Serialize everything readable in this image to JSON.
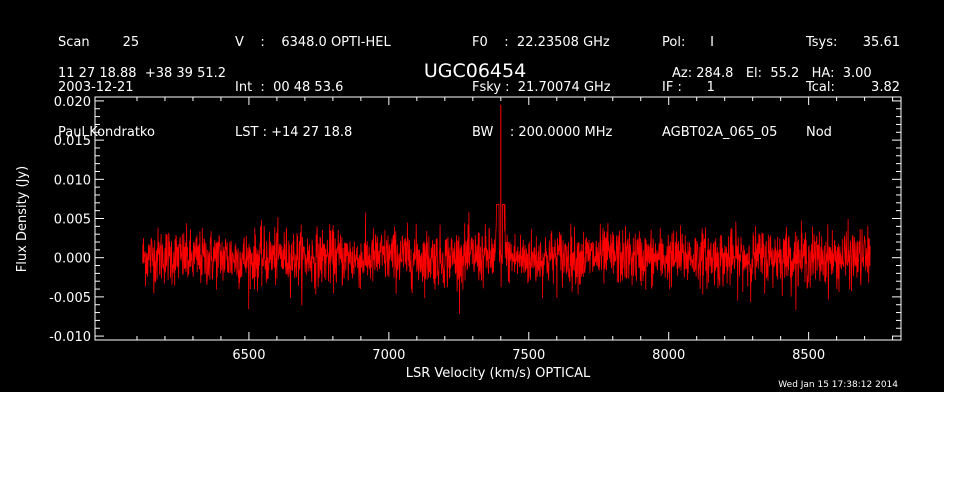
{
  "header": {
    "col1": [
      "Scan        25",
      "2003-12-21",
      "Paul Kondratko"
    ],
    "col2": [
      "V    :    6348.0 OPTI-HEL",
      "Int  :  00 48 53.6",
      "LST : +14 27 18.8"
    ],
    "col3": [
      "F0    :  22.23508 GHz",
      "Fsky :  21.70074 GHz",
      "BW    : 200.0000 MHz"
    ],
    "col4": [
      "Pol:      I",
      "IF :      1",
      "AGBT02A_065_05"
    ],
    "col5_labels": [
      "Tsys:",
      "Tcal:",
      "Nod"
    ],
    "col5_values": [
      "35.61",
      "3.82",
      ""
    ],
    "coords": "11 27 18.88  +38 39 51.2",
    "pointing": "Az: 284.8   El:  55.2   HA:  3.00"
  },
  "footer": "Wed Jan 15 17:38:12 2014",
  "colors": {
    "background": "#000000",
    "axes": "#ffffff",
    "trace": "#ff0000"
  },
  "chart_data": {
    "type": "line",
    "title": "UGC06454",
    "xlabel": "LSR Velocity (km/s) OPTICAL",
    "ylabel": "Flux Density (Jy)",
    "xlim": [
      5950,
      8830
    ],
    "ylim": [
      -0.0105,
      0.0205
    ],
    "xticks": [
      6500,
      7000,
      7500,
      8000,
      8500
    ],
    "xtick_labels": [
      "6500",
      "7000",
      "7500",
      "8000",
      "8500"
    ],
    "yticks": [
      -0.01,
      -0.005,
      0.0,
      0.005,
      0.01,
      0.015,
      0.02
    ],
    "ytick_labels": [
      "-0.010",
      "-0.005",
      "0.000",
      "0.005",
      "0.010",
      "0.015",
      "0.020"
    ],
    "grid": false,
    "series": [
      {
        "x": [
          6120,
          6200,
          6300,
          6400,
          6450,
          6500,
          6600,
          6700,
          6800,
          6900,
          7000,
          7100,
          7200,
          7300,
          7380,
          7400,
          7420,
          7500,
          7600,
          7700,
          7800,
          7900,
          8000,
          8100,
          8200,
          8300,
          8400,
          8500,
          8600,
          8700,
          8720
        ],
        "y": [
          0.0,
          0.0003,
          -0.0002,
          0.0001,
          0.0,
          -0.0003,
          0.0002,
          0.0,
          0.0001,
          -0.0002,
          0.0002,
          0.0,
          -0.0001,
          0.0002,
          0.0,
          0.0195,
          0.0,
          -0.0002,
          0.0001,
          0.0,
          0.0002,
          -0.0001,
          0.0,
          0.0001,
          -0.0002,
          0.0,
          0.0002,
          0.0,
          -0.0001,
          0.0001,
          0.0
        ]
      }
    ]
  }
}
